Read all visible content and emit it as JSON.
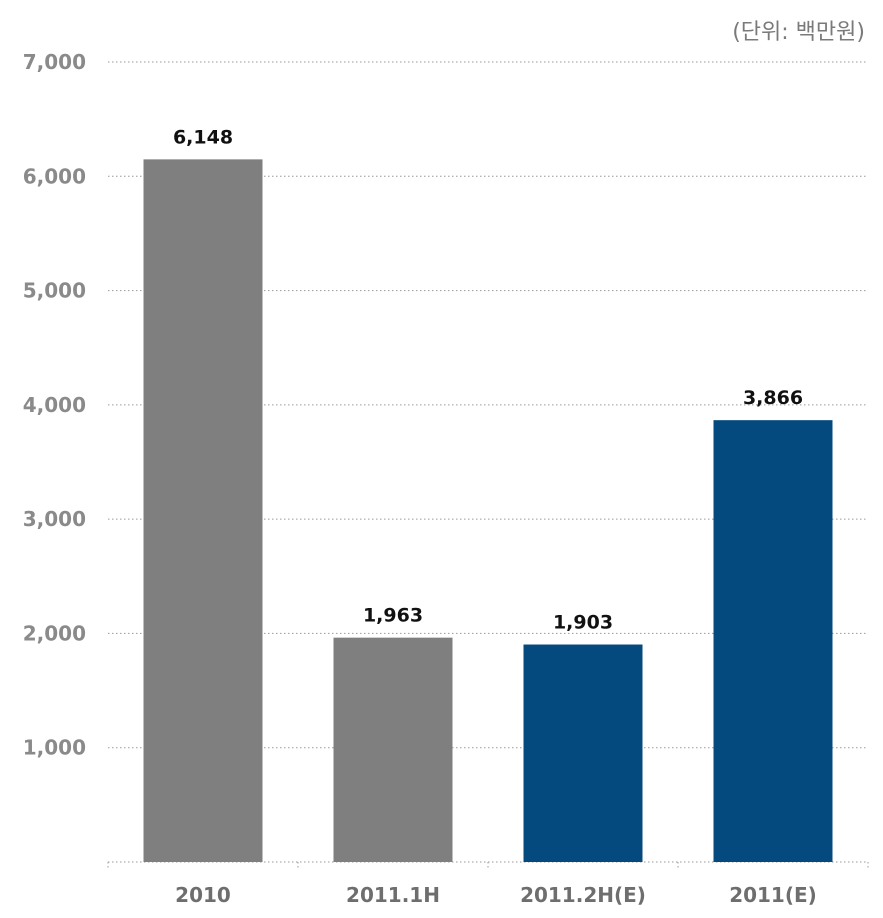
{
  "unit_label": "(단위: 백만원)",
  "chart_data": {
    "type": "bar",
    "title": "",
    "xlabel": "",
    "ylabel": "",
    "unit": "(단위: 백만원)",
    "categories": [
      "2010",
      "2011.1H",
      "2011.2H(E)",
      "2011(E)"
    ],
    "values": [
      6148,
      1963,
      1903,
      3866
    ],
    "data_labels": [
      "6,148",
      "1,963",
      "1,903",
      "3,866"
    ],
    "bar_colors": [
      "#7f7f7f",
      "#7f7f7f",
      "#044a7e",
      "#044a7e"
    ],
    "ylim": [
      0,
      7000
    ],
    "yticks": [
      1000,
      2000,
      3000,
      4000,
      5000,
      6000,
      7000
    ],
    "ytick_labels": [
      "1,000",
      "2,000",
      "3,000",
      "4,000",
      "5,000",
      "6,000",
      "7,000"
    ],
    "grid": true,
    "legend": "none"
  }
}
